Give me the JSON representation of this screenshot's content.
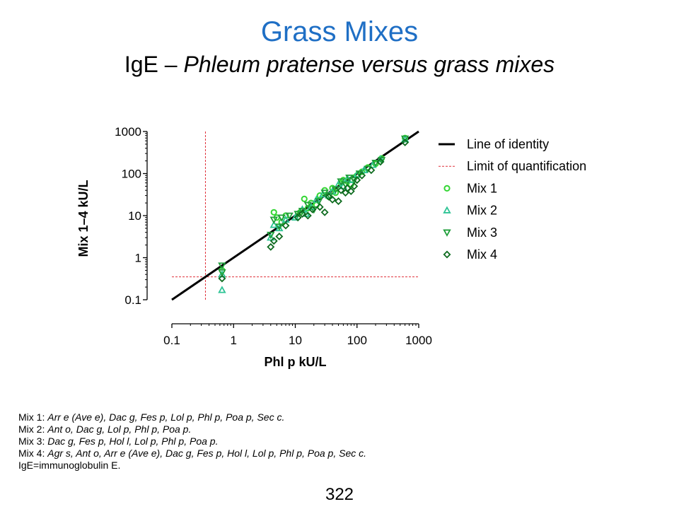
{
  "slide": {
    "title": "Grass Mixes",
    "subtitle_prefix": "IgE – ",
    "subtitle_italic": "Phleum pratense versus grass mixes",
    "page_number": "322"
  },
  "footnotes": [
    {
      "label": "Mix 1: ",
      "text": "Arr e (Ave e), Dac g, Fes p, Lol p, Phl p, Poa p, Sec c."
    },
    {
      "label": "Mix 2: ",
      "text": "Ant o, Dac g, Lol p, Phl p, Poa p."
    },
    {
      "label": "Mix 3: ",
      "text": "Dac g, Fes p, Hol l, Lol p, Phl p, Poa p."
    },
    {
      "label": "Mix 4: ",
      "text": "Agr s, Ant o, Arr e (Ave e), Dac g, Fes p, Hol l, Lol p, Phl p, Poa p, Sec c."
    },
    {
      "label": "IgE=immunoglobulin E.",
      "text": ""
    }
  ],
  "chart_data": {
    "type": "scatter",
    "xlabel": "Phl p kU/L",
    "ylabel": "Mix 1–4 kU/L",
    "xscale": "log",
    "yscale": "log",
    "xlim": [
      0.1,
      1000
    ],
    "ylim": [
      0.1,
      1000
    ],
    "xticks": [
      "0.1",
      "1",
      "10",
      "100",
      "1000"
    ],
    "yticks": [
      "0.1",
      "1",
      "10",
      "100",
      "1000"
    ],
    "grid": false,
    "legend_position": "right",
    "identity_line": {
      "name": "Line of identity",
      "color": "#000000"
    },
    "limit_of_quantification": {
      "name": "Limit of quantification",
      "x": 0.35,
      "y": 0.35,
      "color": "#e0303a"
    },
    "series": [
      {
        "name": "Mix 1",
        "marker": "circle",
        "color": "#33d633",
        "points": [
          [
            0.65,
            0.5
          ],
          [
            4.5,
            12
          ],
          [
            5,
            9
          ],
          [
            6,
            7
          ],
          [
            7,
            10
          ],
          [
            12,
            12
          ],
          [
            14,
            25
          ],
          [
            16,
            15
          ],
          [
            18,
            20
          ],
          [
            22,
            18
          ],
          [
            25,
            30
          ],
          [
            30,
            40
          ],
          [
            35,
            28
          ],
          [
            40,
            45
          ],
          [
            45,
            35
          ],
          [
            55,
            60
          ],
          [
            60,
            70
          ],
          [
            70,
            65
          ],
          [
            80,
            55
          ],
          [
            90,
            80
          ],
          [
            100,
            90
          ],
          [
            120,
            110
          ],
          [
            150,
            140
          ],
          [
            200,
            170
          ],
          [
            250,
            230
          ],
          [
            600,
            700
          ]
        ]
      },
      {
        "name": "Mix 2",
        "marker": "triangle-up",
        "color": "#2ec495",
        "points": [
          [
            0.65,
            0.17
          ],
          [
            0.65,
            0.4
          ],
          [
            4,
            3
          ],
          [
            4.5,
            6
          ],
          [
            5.5,
            5
          ],
          [
            7,
            8
          ],
          [
            10,
            9
          ],
          [
            13,
            14
          ],
          [
            15,
            11
          ],
          [
            18,
            16
          ],
          [
            22,
            24
          ],
          [
            28,
            32
          ],
          [
            35,
            30
          ],
          [
            40,
            38
          ],
          [
            50,
            55
          ],
          [
            60,
            50
          ],
          [
            70,
            75
          ],
          [
            80,
            70
          ],
          [
            100,
            95
          ],
          [
            130,
            120
          ],
          [
            180,
            160
          ],
          [
            240,
            220
          ],
          [
            600,
            650
          ]
        ]
      },
      {
        "name": "Mix 3",
        "marker": "triangle-down",
        "color": "#1f9e3a",
        "points": [
          [
            0.65,
            0.65
          ],
          [
            0.65,
            0.45
          ],
          [
            4,
            3.5
          ],
          [
            4.5,
            8
          ],
          [
            5.5,
            5.5
          ],
          [
            6,
            9
          ],
          [
            8,
            10
          ],
          [
            11,
            11
          ],
          [
            13,
            13
          ],
          [
            16,
            18
          ],
          [
            20,
            14
          ],
          [
            24,
            22
          ],
          [
            30,
            35
          ],
          [
            36,
            30
          ],
          [
            45,
            42
          ],
          [
            55,
            65
          ],
          [
            65,
            55
          ],
          [
            75,
            80
          ],
          [
            90,
            70
          ],
          [
            110,
            100
          ],
          [
            150,
            130
          ],
          [
            200,
            180
          ],
          [
            250,
            210
          ],
          [
            600,
            680
          ]
        ]
      },
      {
        "name": "Mix 4",
        "marker": "diamond",
        "color": "#0e6b1f",
        "points": [
          [
            0.65,
            0.32
          ],
          [
            4,
            1.8
          ],
          [
            4.5,
            2.5
          ],
          [
            5.5,
            3.2
          ],
          [
            7,
            5.8
          ],
          [
            11,
            9
          ],
          [
            13,
            11
          ],
          [
            16,
            10
          ],
          [
            19,
            14
          ],
          [
            25,
            16
          ],
          [
            30,
            12
          ],
          [
            35,
            28
          ],
          [
            40,
            24
          ],
          [
            50,
            22
          ],
          [
            55,
            40
          ],
          [
            65,
            35
          ],
          [
            70,
            45
          ],
          [
            80,
            38
          ],
          [
            90,
            50
          ],
          [
            100,
            70
          ],
          [
            120,
            90
          ],
          [
            170,
            120
          ],
          [
            240,
            190
          ],
          [
            600,
            550
          ]
        ]
      }
    ]
  }
}
